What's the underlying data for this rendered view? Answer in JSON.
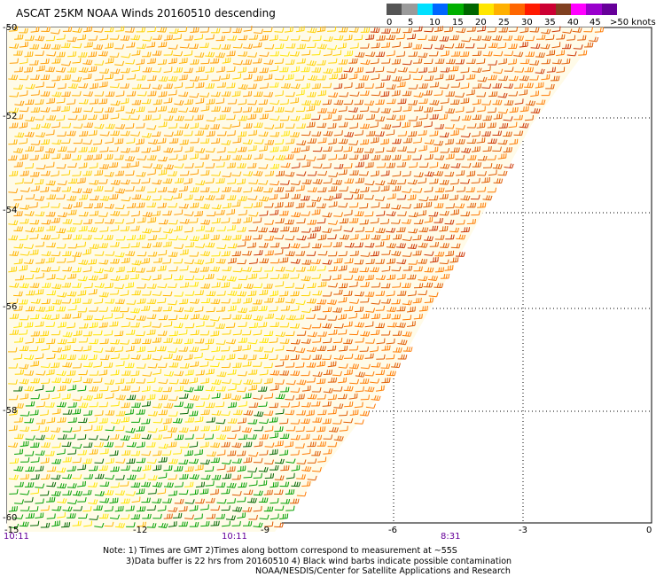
{
  "title": "ASCAT 25KM NOAA Winds 20160510 descending",
  "scale": {
    "labels": [
      "0",
      "5",
      "10",
      "15",
      "20",
      "25",
      "30",
      "35",
      "40",
      "45",
      ">50 knots"
    ],
    "colors": [
      "#555555",
      "#9a9a9a",
      "#00e0ff",
      "#0066ff",
      "#00b000",
      "#006600",
      "#ffe600",
      "#ffb000",
      "#ff6600",
      "#ff1a00",
      "#cc0033",
      "#804020",
      "#ff00ff",
      "#9900cc",
      "#660099"
    ]
  },
  "latitudes": [
    "-50",
    "-52",
    "-54",
    "-56",
    "-58",
    "-60"
  ],
  "longitudes": [
    "-15",
    "-12",
    "-9",
    "-6",
    "-3",
    "0"
  ],
  "times": [
    "10:11",
    "10:11",
    "8:31"
  ],
  "notes": [
    "Note: 1) Times are GMT 2)Times along bottom correspond to measurement at ~55S",
    "3)Data buffer is 22 hrs from 20160510 4) Black wind barbs indicate possible contamination",
    "NOAA/NESDIS/Center for Satellite Applications and Research"
  ]
}
